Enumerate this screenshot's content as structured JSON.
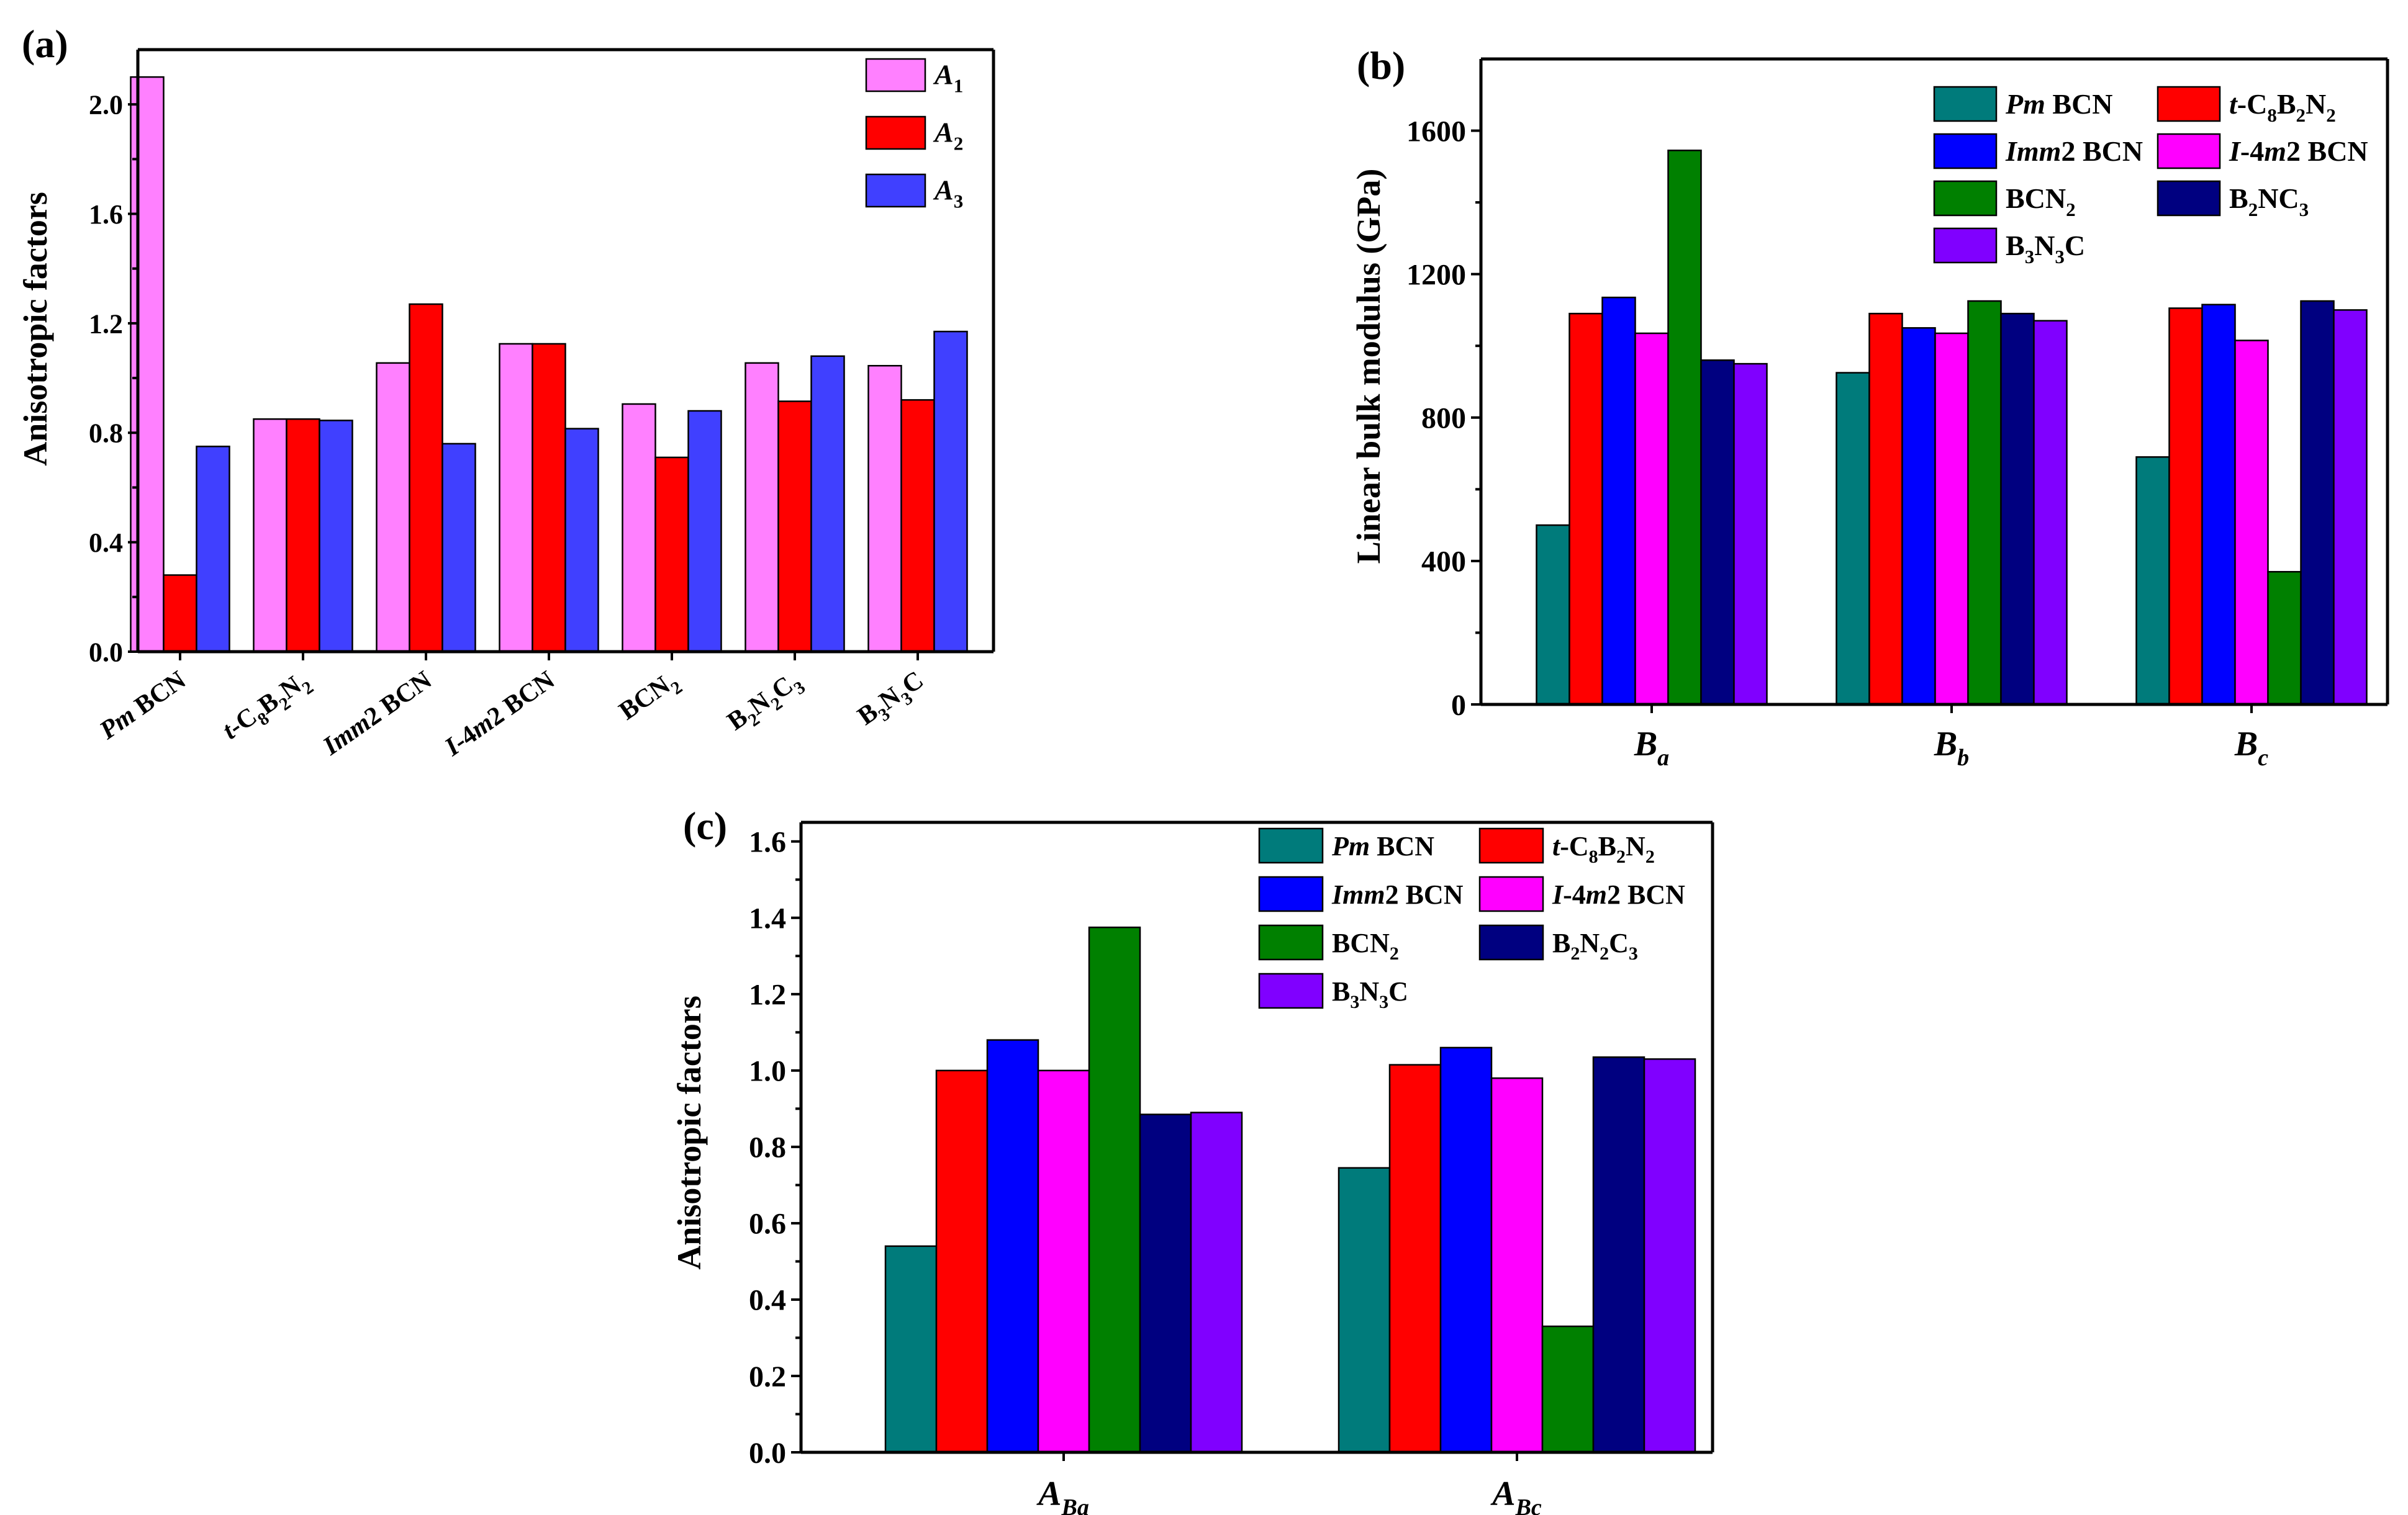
{
  "colors": {
    "pm": "#007b7b",
    "tc8": "#ff0000",
    "imm2": "#0000ff",
    "i4m2": "#ff00ff",
    "bcn2": "#008000",
    "b2nc3": "#000080",
    "b3n3c": "#8000ff",
    "a1": "#ff80ff",
    "a2": "#ff0000",
    "a3": "#4040ff"
  },
  "chart_data": [
    {
      "id": "a",
      "panel_label": "(a)",
      "type": "bar",
      "title": "",
      "xlabel": "",
      "ylabel": "Anisotropic factors",
      "ylim": [
        0,
        2.2
      ],
      "yticks": [
        "0.0",
        "0.4",
        "0.8",
        "1.2",
        "1.6",
        "2.0"
      ],
      "ytick_values": [
        0,
        0.4,
        0.8,
        1.2,
        1.6,
        2.0
      ],
      "legend_position": "top-right",
      "categories": [
        {
          "runs": [
            {
              "t": "Pm",
              "i": true
            },
            {
              "t": " BCN"
            }
          ]
        },
        {
          "runs": [
            {
              "t": "t",
              "i": true
            },
            {
              "t": "-C"
            },
            {
              "t": "8",
              "sub": true
            },
            {
              "t": "B"
            },
            {
              "t": "2",
              "sub": true
            },
            {
              "t": "N"
            },
            {
              "t": "2",
              "sub": true
            }
          ]
        },
        {
          "runs": [
            {
              "t": "Imm",
              "i": true
            },
            {
              "t": "2 BCN"
            }
          ]
        },
        {
          "runs": [
            {
              "t": "I",
              "i": true
            },
            {
              "t": "-4"
            },
            {
              "t": "m",
              "i": true
            },
            {
              "t": "2 BCN"
            }
          ]
        },
        {
          "runs": [
            {
              "t": "BCN"
            },
            {
              "t": "2",
              "sub": true
            }
          ]
        },
        {
          "runs": [
            {
              "t": "B"
            },
            {
              "t": "2",
              "sub": true
            },
            {
              "t": "N"
            },
            {
              "t": "2",
              "sub": true
            },
            {
              "t": "C"
            },
            {
              "t": "3",
              "sub": true
            }
          ]
        },
        {
          "runs": [
            {
              "t": "B"
            },
            {
              "t": "3",
              "sub": true
            },
            {
              "t": "N"
            },
            {
              "t": "3",
              "sub": true
            },
            {
              "t": "C"
            }
          ]
        }
      ],
      "series": [
        {
          "name": "A1",
          "color_key": "a1",
          "legend": [
            {
              "t": "A",
              "i": true
            },
            {
              "t": "1",
              "sub": true
            }
          ],
          "values": [
            2.1,
            0.85,
            1.055,
            1.125,
            0.905,
            1.055,
            1.045
          ]
        },
        {
          "name": "A2",
          "color_key": "a2",
          "legend": [
            {
              "t": "A",
              "i": true
            },
            {
              "t": "2",
              "sub": true
            }
          ],
          "values": [
            0.28,
            0.85,
            1.27,
            1.125,
            0.71,
            0.915,
            0.92
          ]
        },
        {
          "name": "A3",
          "color_key": "a3",
          "legend": [
            {
              "t": "A",
              "i": true
            },
            {
              "t": "3",
              "sub": true
            }
          ],
          "values": [
            0.75,
            0.845,
            0.76,
            0.815,
            0.88,
            1.08,
            1.17
          ]
        }
      ]
    },
    {
      "id": "b",
      "panel_label": "(b)",
      "type": "bar",
      "title": "",
      "xlabel": "",
      "ylabel": "Linear bulk modulus (GPa)",
      "ylim": [
        0,
        1800
      ],
      "yticks": [
        "0",
        "400",
        "800",
        "1200",
        "1600"
      ],
      "ytick_values": [
        0,
        400,
        800,
        1200,
        1600
      ],
      "legend_position": "top-right",
      "categories": [
        {
          "runs": [
            {
              "t": "B",
              "i": true
            },
            {
              "t": "a",
              "i": true,
              "sub": true
            }
          ]
        },
        {
          "runs": [
            {
              "t": "B",
              "i": true
            },
            {
              "t": "b",
              "i": true,
              "sub": true
            }
          ]
        },
        {
          "runs": [
            {
              "t": "B",
              "i": true
            },
            {
              "t": "c",
              "i": true,
              "sub": true
            }
          ]
        }
      ],
      "series": [
        {
          "name": "Pm BCN",
          "color_key": "pm",
          "legend": [
            {
              "t": "Pm",
              "i": true
            },
            {
              "t": " BCN"
            }
          ],
          "values": [
            500,
            925,
            690
          ]
        },
        {
          "name": "t-C8B2N2",
          "color_key": "tc8",
          "legend": [
            {
              "t": "t",
              "i": true
            },
            {
              "t": "-C"
            },
            {
              "t": "8",
              "sub": true
            },
            {
              "t": "B"
            },
            {
              "t": "2",
              "sub": true
            },
            {
              "t": "N"
            },
            {
              "t": "2",
              "sub": true
            }
          ],
          "values": [
            1090,
            1090,
            1105
          ]
        },
        {
          "name": "Imm2 BCN",
          "color_key": "imm2",
          "legend": [
            {
              "t": "Imm",
              "i": true
            },
            {
              "t": "2 BCN"
            }
          ],
          "values": [
            1135,
            1050,
            1115
          ]
        },
        {
          "name": "I-4m2 BCN",
          "color_key": "i4m2",
          "legend": [
            {
              "t": "I",
              "i": true
            },
            {
              "t": "-4"
            },
            {
              "t": "m",
              "i": true
            },
            {
              "t": "2 BCN"
            }
          ],
          "values": [
            1035,
            1035,
            1015
          ]
        },
        {
          "name": "BCN2",
          "color_key": "bcn2",
          "legend": [
            {
              "t": "BCN"
            },
            {
              "t": "2",
              "sub": true
            }
          ],
          "values": [
            1545,
            1125,
            370
          ]
        },
        {
          "name": "B2NC3",
          "color_key": "b2nc3",
          "legend": [
            {
              "t": "B"
            },
            {
              "t": "2",
              "sub": true
            },
            {
              "t": "NC"
            },
            {
              "t": "3",
              "sub": true
            }
          ],
          "values": [
            960,
            1090,
            1125
          ]
        },
        {
          "name": "B3N3C",
          "color_key": "b3n3c",
          "legend": [
            {
              "t": "B"
            },
            {
              "t": "3",
              "sub": true
            },
            {
              "t": "N"
            },
            {
              "t": "3",
              "sub": true
            },
            {
              "t": "C"
            }
          ],
          "values": [
            950,
            1070,
            1100
          ]
        }
      ]
    },
    {
      "id": "c",
      "panel_label": "(c)",
      "type": "bar",
      "title": "",
      "xlabel": "",
      "ylabel": "Anisotropic factors",
      "ylim": [
        0,
        1.65
      ],
      "yticks": [
        "0.0",
        "0.2",
        "0.4",
        "0.6",
        "0.8",
        "1.0",
        "1.2",
        "1.4",
        "1.6"
      ],
      "ytick_values": [
        0,
        0.2,
        0.4,
        0.6,
        0.8,
        1.0,
        1.2,
        1.4,
        1.6
      ],
      "legend_position": "top-right",
      "categories": [
        {
          "runs": [
            {
              "t": "A",
              "i": true
            },
            {
              "t": "Ba",
              "i": true,
              "sub": true
            }
          ]
        },
        {
          "runs": [
            {
              "t": "A",
              "i": true
            },
            {
              "t": "Bc",
              "i": true,
              "sub": true
            }
          ]
        }
      ],
      "series": [
        {
          "name": "Pm BCN",
          "color_key": "pm",
          "legend": [
            {
              "t": "Pm",
              "i": true
            },
            {
              "t": " BCN"
            }
          ],
          "values": [
            0.54,
            0.745
          ]
        },
        {
          "name": "t-C8B2N2",
          "color_key": "tc8",
          "legend": [
            {
              "t": "t",
              "i": true
            },
            {
              "t": "-C"
            },
            {
              "t": "8",
              "sub": true
            },
            {
              "t": "B"
            },
            {
              "t": "2",
              "sub": true
            },
            {
              "t": "N"
            },
            {
              "t": "2",
              "sub": true
            }
          ],
          "values": [
            1.0,
            1.015
          ]
        },
        {
          "name": "Imm2 BCN",
          "color_key": "imm2",
          "legend": [
            {
              "t": "Imm",
              "i": true
            },
            {
              "t": "2 BCN"
            }
          ],
          "values": [
            1.08,
            1.06
          ]
        },
        {
          "name": "I-4m2 BCN",
          "color_key": "i4m2",
          "legend": [
            {
              "t": "I",
              "i": true
            },
            {
              "t": "-4"
            },
            {
              "t": "m",
              "i": true
            },
            {
              "t": "2 BCN"
            }
          ],
          "values": [
            1.0,
            0.98
          ]
        },
        {
          "name": "BCN2",
          "color_key": "bcn2",
          "legend": [
            {
              "t": "BCN"
            },
            {
              "t": "2",
              "sub": true
            }
          ],
          "values": [
            1.375,
            0.33
          ]
        },
        {
          "name": "B2N2C3",
          "color_key": "b2nc3",
          "legend": [
            {
              "t": "B"
            },
            {
              "t": "2",
              "sub": true
            },
            {
              "t": "N"
            },
            {
              "t": "2",
              "sub": true
            },
            {
              "t": "C"
            },
            {
              "t": "3",
              "sub": true
            }
          ],
          "values": [
            0.885,
            1.035
          ]
        },
        {
          "name": "B3N3C",
          "color_key": "b3n3c",
          "legend": [
            {
              "t": "B"
            },
            {
              "t": "3",
              "sub": true
            },
            {
              "t": "N"
            },
            {
              "t": "3",
              "sub": true
            },
            {
              "t": "C"
            }
          ],
          "values": [
            0.89,
            1.03
          ]
        }
      ]
    }
  ]
}
